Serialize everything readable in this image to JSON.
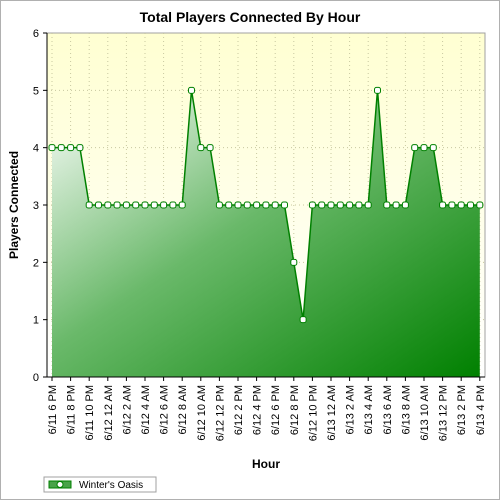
{
  "chart_data": {
    "type": "area",
    "title": "Total Players Connected By Hour",
    "xlabel": "Hour",
    "ylabel": "Players Connected",
    "ylim": [
      0,
      6
    ],
    "yticks": [
      "0",
      "1",
      "2",
      "3",
      "4",
      "5",
      "6"
    ],
    "grid": true,
    "legend_position": "bottom-left",
    "x_tick_labels": [
      "6/11 6 PM",
      "6/11 8 PM",
      "6/11 10 PM",
      "6/12 12 AM",
      "6/12 2 AM",
      "6/12 4 AM",
      "6/12 6 AM",
      "6/12 8 AM",
      "6/12 10 AM",
      "6/12 12 PM",
      "6/12 2 PM",
      "6/12 4 PM",
      "6/12 6 PM",
      "6/12 8 PM",
      "6/12 10 PM",
      "6/13 12 AM",
      "6/13 2 AM",
      "6/13 4 AM",
      "6/13 6 AM",
      "6/13 8 AM",
      "6/13 10 AM",
      "6/13 12 PM",
      "6/13 2 PM",
      "6/13 4 PM"
    ],
    "series": [
      {
        "name": "Winter's Oasis",
        "color": "#008000",
        "values": [
          4,
          4,
          4,
          4,
          3,
          3,
          3,
          3,
          3,
          3,
          3,
          3,
          3,
          3,
          3,
          5,
          4,
          4,
          3,
          3,
          3,
          3,
          3,
          3,
          3,
          3,
          2,
          1,
          3,
          3,
          3,
          3,
          3,
          3,
          3,
          5,
          3,
          3,
          3,
          4,
          4,
          4,
          3,
          3,
          3,
          3,
          3
        ]
      }
    ]
  }
}
